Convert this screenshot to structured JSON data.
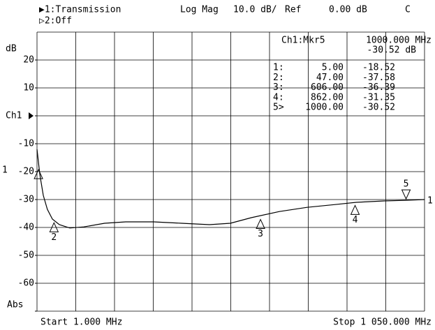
{
  "header": {
    "channel1": "▶1:Transmission",
    "format": "Log Mag",
    "scale": "10.0 dB/",
    "ref_label": "Ref",
    "ref_value": "0.00 dB",
    "coupling": "C",
    "channel2": "▷2:Off"
  },
  "chart_data": {
    "type": "line",
    "y_label": "dB",
    "xlim": [
      1,
      1050
    ],
    "ylim": [
      -70,
      30
    ],
    "yticks": [
      20,
      10,
      {
        "value": 0,
        "label": "Ch1"
      },
      -10,
      -20,
      -30,
      -40,
      -50,
      -60,
      {
        "value": -70,
        "label": "Abs"
      }
    ],
    "grid": {
      "x_divisions": 10,
      "y_divisions": 10
    },
    "series": [
      {
        "name": "1",
        "color": "#000000",
        "x": [
          1,
          8.6,
          18,
          29,
          42.6,
          61.5,
          89.8,
          127.6,
          184,
          241,
          317,
          392,
          468,
          524.6,
          581,
          657,
          732,
          808,
          865,
          940,
          997,
          1050
        ],
        "values": [
          -12,
          -21,
          -28.5,
          -33.5,
          -37,
          -39,
          -40.2,
          -39.8,
          -38.5,
          -38,
          -38,
          -38.5,
          -39,
          -38.5,
          -36.5,
          -34.3,
          -32.8,
          -31.8,
          -31,
          -30.5,
          -30.3,
          -30
        ]
      }
    ],
    "markers": {
      "names": [
        "1",
        "2",
        "3",
        "4",
        "5"
      ],
      "table_ids": [
        "1:",
        "2:",
        "3:",
        "4:",
        "5>"
      ],
      "x": [
        5,
        47,
        606,
        862,
        1000
      ],
      "x_labels": [
        "5.00",
        "47.00",
        "606.00",
        "862.00",
        "1000.00"
      ],
      "values": [
        -18.52,
        -37.58,
        -36.39,
        -31.35,
        -30.52
      ]
    },
    "active_marker": {
      "label": "Ch1:Mkr5",
      "frequency": "1000.000 MHz",
      "value": "-30.52 dB"
    },
    "start": "Start 1.000 MHz",
    "stop": "Stop 1 050.000 MHz"
  }
}
